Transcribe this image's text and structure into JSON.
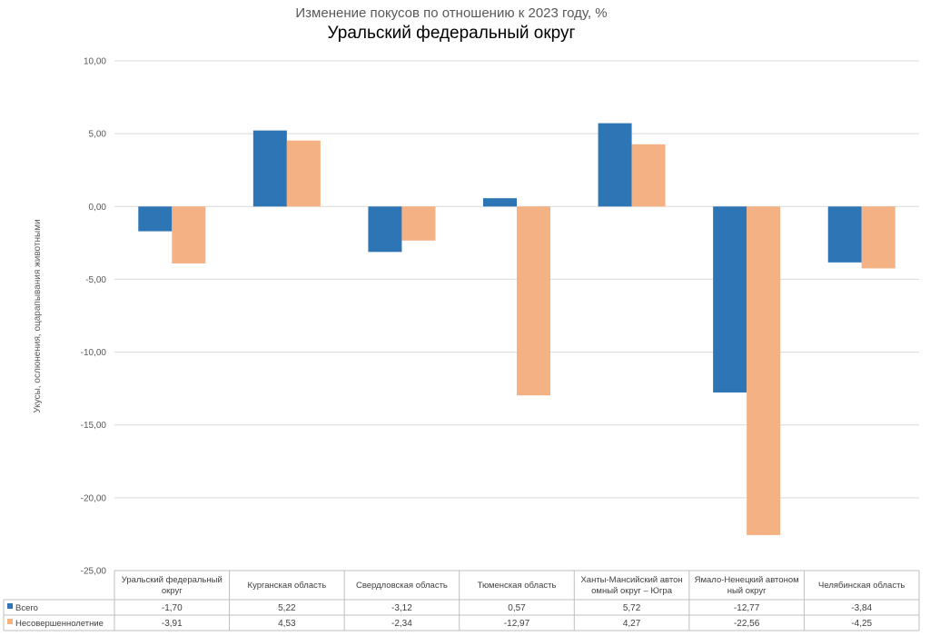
{
  "chart_data": {
    "type": "bar",
    "subtitle": "Изменение покусов по отношению к 2023 году, %",
    "title": "Уральский федеральный округ",
    "xlabel": "",
    "ylabel": "Укусы, ослюнения, оцарапывания животными",
    "ylim": [
      -25,
      10
    ],
    "ytick_step": 5,
    "grid": true,
    "legend": "data-table",
    "categories": [
      [
        "Уральский федеральный",
        "округ"
      ],
      [
        "Курганская область"
      ],
      [
        "Свердловская область"
      ],
      [
        "Тюменская область"
      ],
      [
        "Ханты-Мансийский автон",
        "омный округ – Югра"
      ],
      [
        "Ямало-Ненецкий автоном",
        "ный округ"
      ],
      [
        "Челябинская область"
      ]
    ],
    "series": [
      {
        "name": "Всего",
        "color": "#2E75B6",
        "values": [
          -1.7,
          5.22,
          -3.12,
          0.57,
          5.72,
          -12.77,
          -3.84
        ],
        "labels": [
          "-1,70",
          "5,22",
          "-3,12",
          "0,57",
          "5,72",
          "-12,77",
          "-3,84"
        ]
      },
      {
        "name": "Несовершеннолетние",
        "color": "#F4B183",
        "values": [
          -3.91,
          4.53,
          -2.34,
          -12.97,
          4.27,
          -22.56,
          -4.25
        ],
        "labels": [
          "-3,91",
          "4,53",
          "-2,34",
          "-12,97",
          "4,27",
          "-22,56",
          "-4,25"
        ]
      }
    ]
  }
}
